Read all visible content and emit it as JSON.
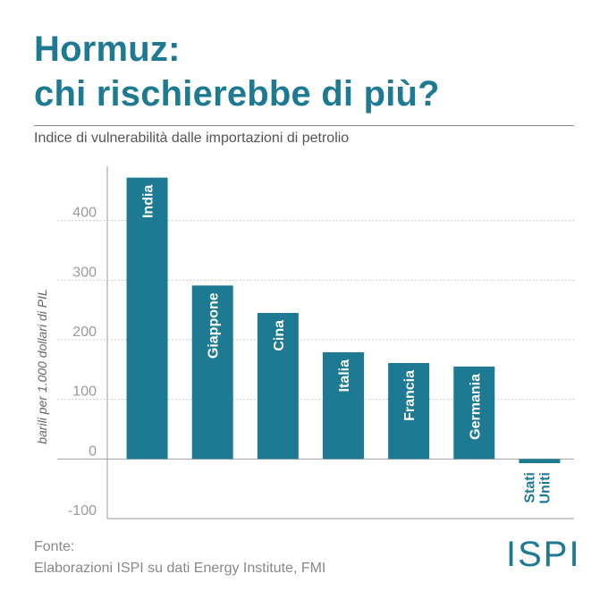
{
  "header": {
    "title_line1": "Hormuz:",
    "title_line2": "chi rischierebbe di più?",
    "subtitle": "Indice di vulnerabilità dalle importazioni di petrolio"
  },
  "footer": {
    "source_label": "Fonte:",
    "source_text": "Elaborazioni ISPI su dati Energy Institute, FMI",
    "logo": "ISPI"
  },
  "colors": {
    "bar": "#1e7a92",
    "title": "#1e7a92",
    "grid": "#c8c8c8",
    "tick": "#9a9a9a"
  },
  "chart_data": {
    "type": "bar",
    "title": "",
    "xlabel": "",
    "ylabel": "barili per 1.000 dollari di PIL",
    "ylim": [
      -100,
      500
    ],
    "yticks": [
      -100,
      0,
      100,
      200,
      300,
      400
    ],
    "grid": true,
    "categories": [
      "India",
      "Giappone",
      "Cina",
      "Italia",
      "Francia",
      "Germania",
      "Stati Uniti"
    ],
    "category_display": [
      [
        "India"
      ],
      [
        "Giappone"
      ],
      [
        "Cina"
      ],
      [
        "Italia"
      ],
      [
        "Francia"
      ],
      [
        "Germania"
      ],
      [
        "Stati",
        "Uniti"
      ]
    ],
    "values": [
      472,
      291,
      245,
      179,
      161,
      155,
      -7
    ]
  }
}
